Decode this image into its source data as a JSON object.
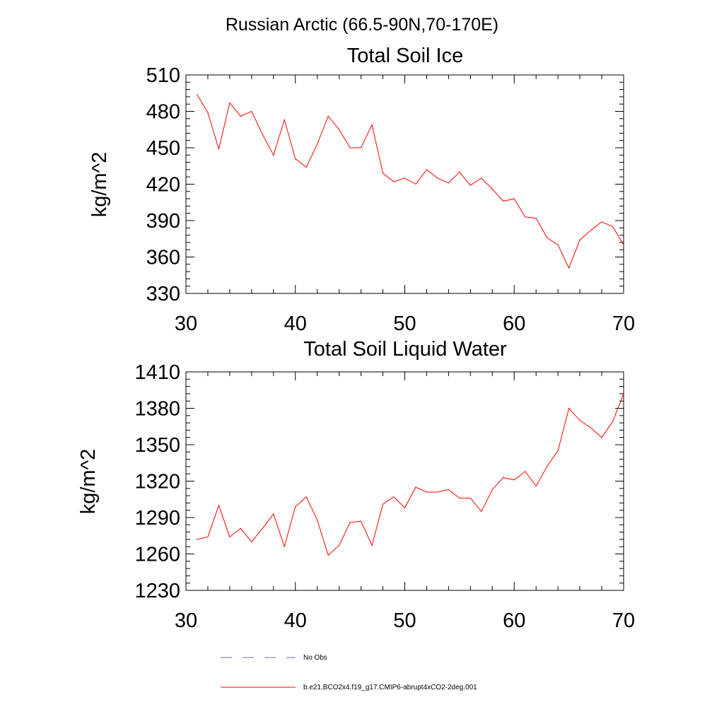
{
  "figure": {
    "suptitle": "Russian Arctic (66.5-90N,70-170E)"
  },
  "legend": {
    "placement": "bottom-left",
    "entries": [
      {
        "label": "No Obs",
        "color": "#6a6aa8",
        "style": "dashed"
      },
      {
        "label": "b.e21.BCO2x4.f19_g17.CMIP6-abrupt4xCO2-2deg.001",
        "color": "#ff0000",
        "style": "solid"
      }
    ]
  },
  "chart_data": [
    {
      "type": "line",
      "title": "Total Soil Ice",
      "xlabel": "",
      "ylabel": "kg/m^2",
      "xlim": [
        30,
        70
      ],
      "ylim": [
        330,
        510
      ],
      "xticks": [
        30,
        40,
        50,
        60,
        70
      ],
      "yticks": [
        330,
        360,
        390,
        420,
        450,
        480,
        510
      ],
      "grid": false,
      "x": [
        31,
        32,
        33,
        34,
        35,
        36,
        37,
        38,
        39,
        40,
        41,
        42,
        43,
        44,
        45,
        46,
        47,
        48,
        49,
        50,
        51,
        52,
        53,
        54,
        55,
        56,
        57,
        58,
        59,
        60,
        61,
        62,
        63,
        64,
        65,
        66,
        67,
        68,
        69,
        70
      ],
      "series": [
        {
          "name": "b.e21.BCO2x4.f19_g17.CMIP6-abrupt4xCO2-2deg.001",
          "color": "#ff0000",
          "values": [
            494,
            479,
            449,
            487,
            476,
            480,
            461,
            444,
            473,
            441,
            434,
            453,
            476,
            465,
            450,
            450,
            469,
            429,
            422,
            425,
            420,
            432,
            425,
            421,
            430,
            419,
            425,
            416,
            406,
            408,
            393,
            392,
            376,
            370,
            351,
            374,
            382,
            389,
            385,
            370
          ]
        }
      ]
    },
    {
      "type": "line",
      "title": "Total Soil Liquid Water",
      "xlabel": "",
      "ylabel": "kg/m^2",
      "xlim": [
        30,
        70
      ],
      "ylim": [
        1230,
        1410
      ],
      "xticks": [
        30,
        40,
        50,
        60,
        70
      ],
      "yticks": [
        1230,
        1260,
        1290,
        1320,
        1350,
        1380,
        1410
      ],
      "grid": false,
      "x": [
        31,
        32,
        33,
        34,
        35,
        36,
        37,
        38,
        39,
        40,
        41,
        42,
        43,
        44,
        45,
        46,
        47,
        48,
        49,
        50,
        51,
        52,
        53,
        54,
        55,
        56,
        57,
        58,
        59,
        60,
        61,
        62,
        63,
        64,
        65,
        66,
        67,
        68,
        69,
        70
      ],
      "series": [
        {
          "name": "b.e21.BCO2x4.f19_g17.CMIP6-abrupt4xCO2-2deg.001",
          "color": "#ff0000",
          "values": [
            1272,
            1274,
            1300,
            1274,
            1281,
            1270,
            1281,
            1293,
            1266,
            1299,
            1307,
            1288,
            1259,
            1267,
            1286,
            1287,
            1267,
            1301,
            1307,
            1298,
            1315,
            1311,
            1311,
            1313,
            1306,
            1306,
            1295,
            1313,
            1323,
            1321,
            1328,
            1316,
            1332,
            1345,
            1380,
            1370,
            1364,
            1356,
            1369,
            1392
          ]
        }
      ]
    }
  ]
}
